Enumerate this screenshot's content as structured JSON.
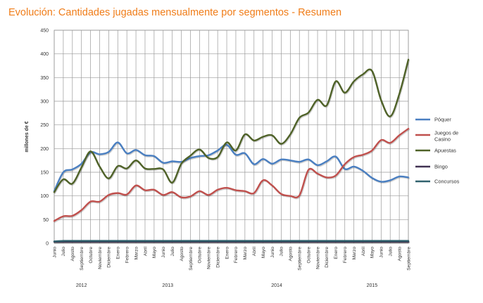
{
  "title": "Evolución: Cantidades jugadas mensualmente por segmentos - Resumen",
  "chart_data": {
    "type": "line",
    "title": "Evolución: Cantidades jugadas mensualmente por segmentos - Resumen",
    "ylabel": "millones de €",
    "xlabel": "",
    "ylim": [
      0,
      450
    ],
    "yticks": [
      "0",
      "50",
      "100",
      "150",
      "200",
      "250",
      "300",
      "350",
      "400",
      "450"
    ],
    "grid": true,
    "legend_position": "right",
    "categories": [
      "Junio",
      "Julio",
      "Agosto",
      "Septiembre",
      "Octubre",
      "Noviembre",
      "Diciembre",
      "Enero",
      "Febrero",
      "Marzo",
      "Abril",
      "Mayo",
      "Junio",
      "Julio",
      "Agosto",
      "Septiembre",
      "Octubre",
      "Noviembre",
      "Diciembre",
      "Enero",
      "Febrero",
      "Marzo",
      "Abril",
      "Mayo",
      "Junio",
      "Julio",
      "Agosto",
      "Septiembre",
      "Octubre",
      "Noviembre",
      "Diciembre",
      "Enero",
      "Febrero",
      "Marzo",
      "Abril",
      "Mayo",
      "Junio",
      "Julio",
      "Agosto",
      "Septiembre"
    ],
    "years": [
      {
        "label": "2012",
        "first": 0,
        "last": 6
      },
      {
        "label": "2013",
        "first": 7,
        "last": 18
      },
      {
        "label": "2014",
        "first": 19,
        "last": 30
      },
      {
        "label": "2015",
        "first": 31,
        "last": 39
      }
    ],
    "series": [
      {
        "name": "Póquer",
        "color": "#4a7fc1",
        "values": [
          110,
          150,
          156,
          168,
          192,
          188,
          193,
          213,
          190,
          197,
          186,
          184,
          170,
          173,
          172,
          180,
          184,
          186,
          196,
          208,
          187,
          190,
          167,
          178,
          168,
          177,
          175,
          172,
          177,
          165,
          173,
          183,
          157,
          162,
          153,
          138,
          130,
          133,
          141,
          139
        ]
      },
      {
        "name": "Juegos de Casino",
        "color": "#c0504d",
        "values": [
          47,
          57,
          58,
          70,
          88,
          88,
          102,
          106,
          103,
          122,
          112,
          113,
          102,
          108,
          97,
          99,
          110,
          102,
          113,
          117,
          112,
          110,
          106,
          133,
          122,
          104,
          100,
          101,
          155,
          147,
          139,
          143,
          167,
          182,
          187,
          196,
          218,
          212,
          228,
          242
        ]
      },
      {
        "name": "Apuestas",
        "color": "#4f6228",
        "values": [
          108,
          135,
          126,
          160,
          194,
          162,
          137,
          163,
          158,
          175,
          158,
          157,
          156,
          128,
          168,
          185,
          198,
          180,
          182,
          213,
          196,
          230,
          217,
          225,
          228,
          210,
          230,
          265,
          276,
          303,
          291,
          342,
          318,
          342,
          357,
          364,
          302,
          268,
          315,
          388
        ]
      },
      {
        "name": "Bingo",
        "color": "#403152",
        "values": [
          3,
          3,
          3,
          3,
          3,
          3,
          3,
          3,
          3,
          3,
          3,
          3,
          3,
          3,
          3,
          3,
          3,
          3,
          3,
          3,
          3,
          3,
          3,
          3,
          3,
          3,
          3,
          3,
          3,
          3,
          3,
          3,
          3,
          3,
          3,
          3,
          3,
          3,
          3,
          3
        ]
      },
      {
        "name": "Concursos",
        "color": "#31626e",
        "values": [
          4,
          5,
          5,
          5,
          5,
          5,
          5,
          5,
          5,
          5,
          5,
          5,
          5,
          5,
          5,
          5,
          5,
          5,
          5,
          5,
          5,
          5,
          5,
          5,
          5,
          5,
          5,
          5,
          5,
          5,
          5,
          5,
          5,
          5,
          5,
          5,
          5,
          5,
          5,
          5
        ]
      }
    ]
  }
}
